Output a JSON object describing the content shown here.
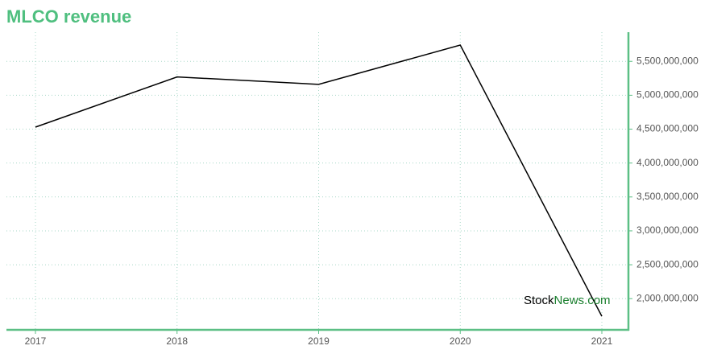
{
  "chart_data": {
    "type": "line",
    "title": "MLCO revenue",
    "categories": [
      "2017",
      "2018",
      "2019",
      "2020",
      "2021"
    ],
    "series": [
      {
        "name": "MLCO revenue",
        "color": "#000000",
        "values": [
          4530000000,
          5270000000,
          5160000000,
          5740000000,
          1740000000
        ]
      }
    ],
    "ylim": [
      1540000000,
      5930000000
    ],
    "yticks": [
      {
        "value": 2000000000,
        "label": "2,000,000,000"
      },
      {
        "value": 2500000000,
        "label": "2,500,000,000"
      },
      {
        "value": 3000000000,
        "label": "3,000,000,000"
      },
      {
        "value": 3500000000,
        "label": "3,500,000,000"
      },
      {
        "value": 4000000000,
        "label": "4,000,000,000"
      },
      {
        "value": 4500000000,
        "label": "4,500,000,000"
      },
      {
        "value": 5000000000,
        "label": "5,000,000,000"
      },
      {
        "value": 5500000000,
        "label": "5,500,000,000"
      }
    ],
    "grid": true,
    "axis_color": "#5cbf85",
    "grid_color": "#a8d8c8",
    "title_color": "#4fbf7f",
    "watermark": [
      "Stock",
      "News.com"
    ],
    "watermark_colors": [
      "#000000",
      "#1a7f2e"
    ]
  }
}
